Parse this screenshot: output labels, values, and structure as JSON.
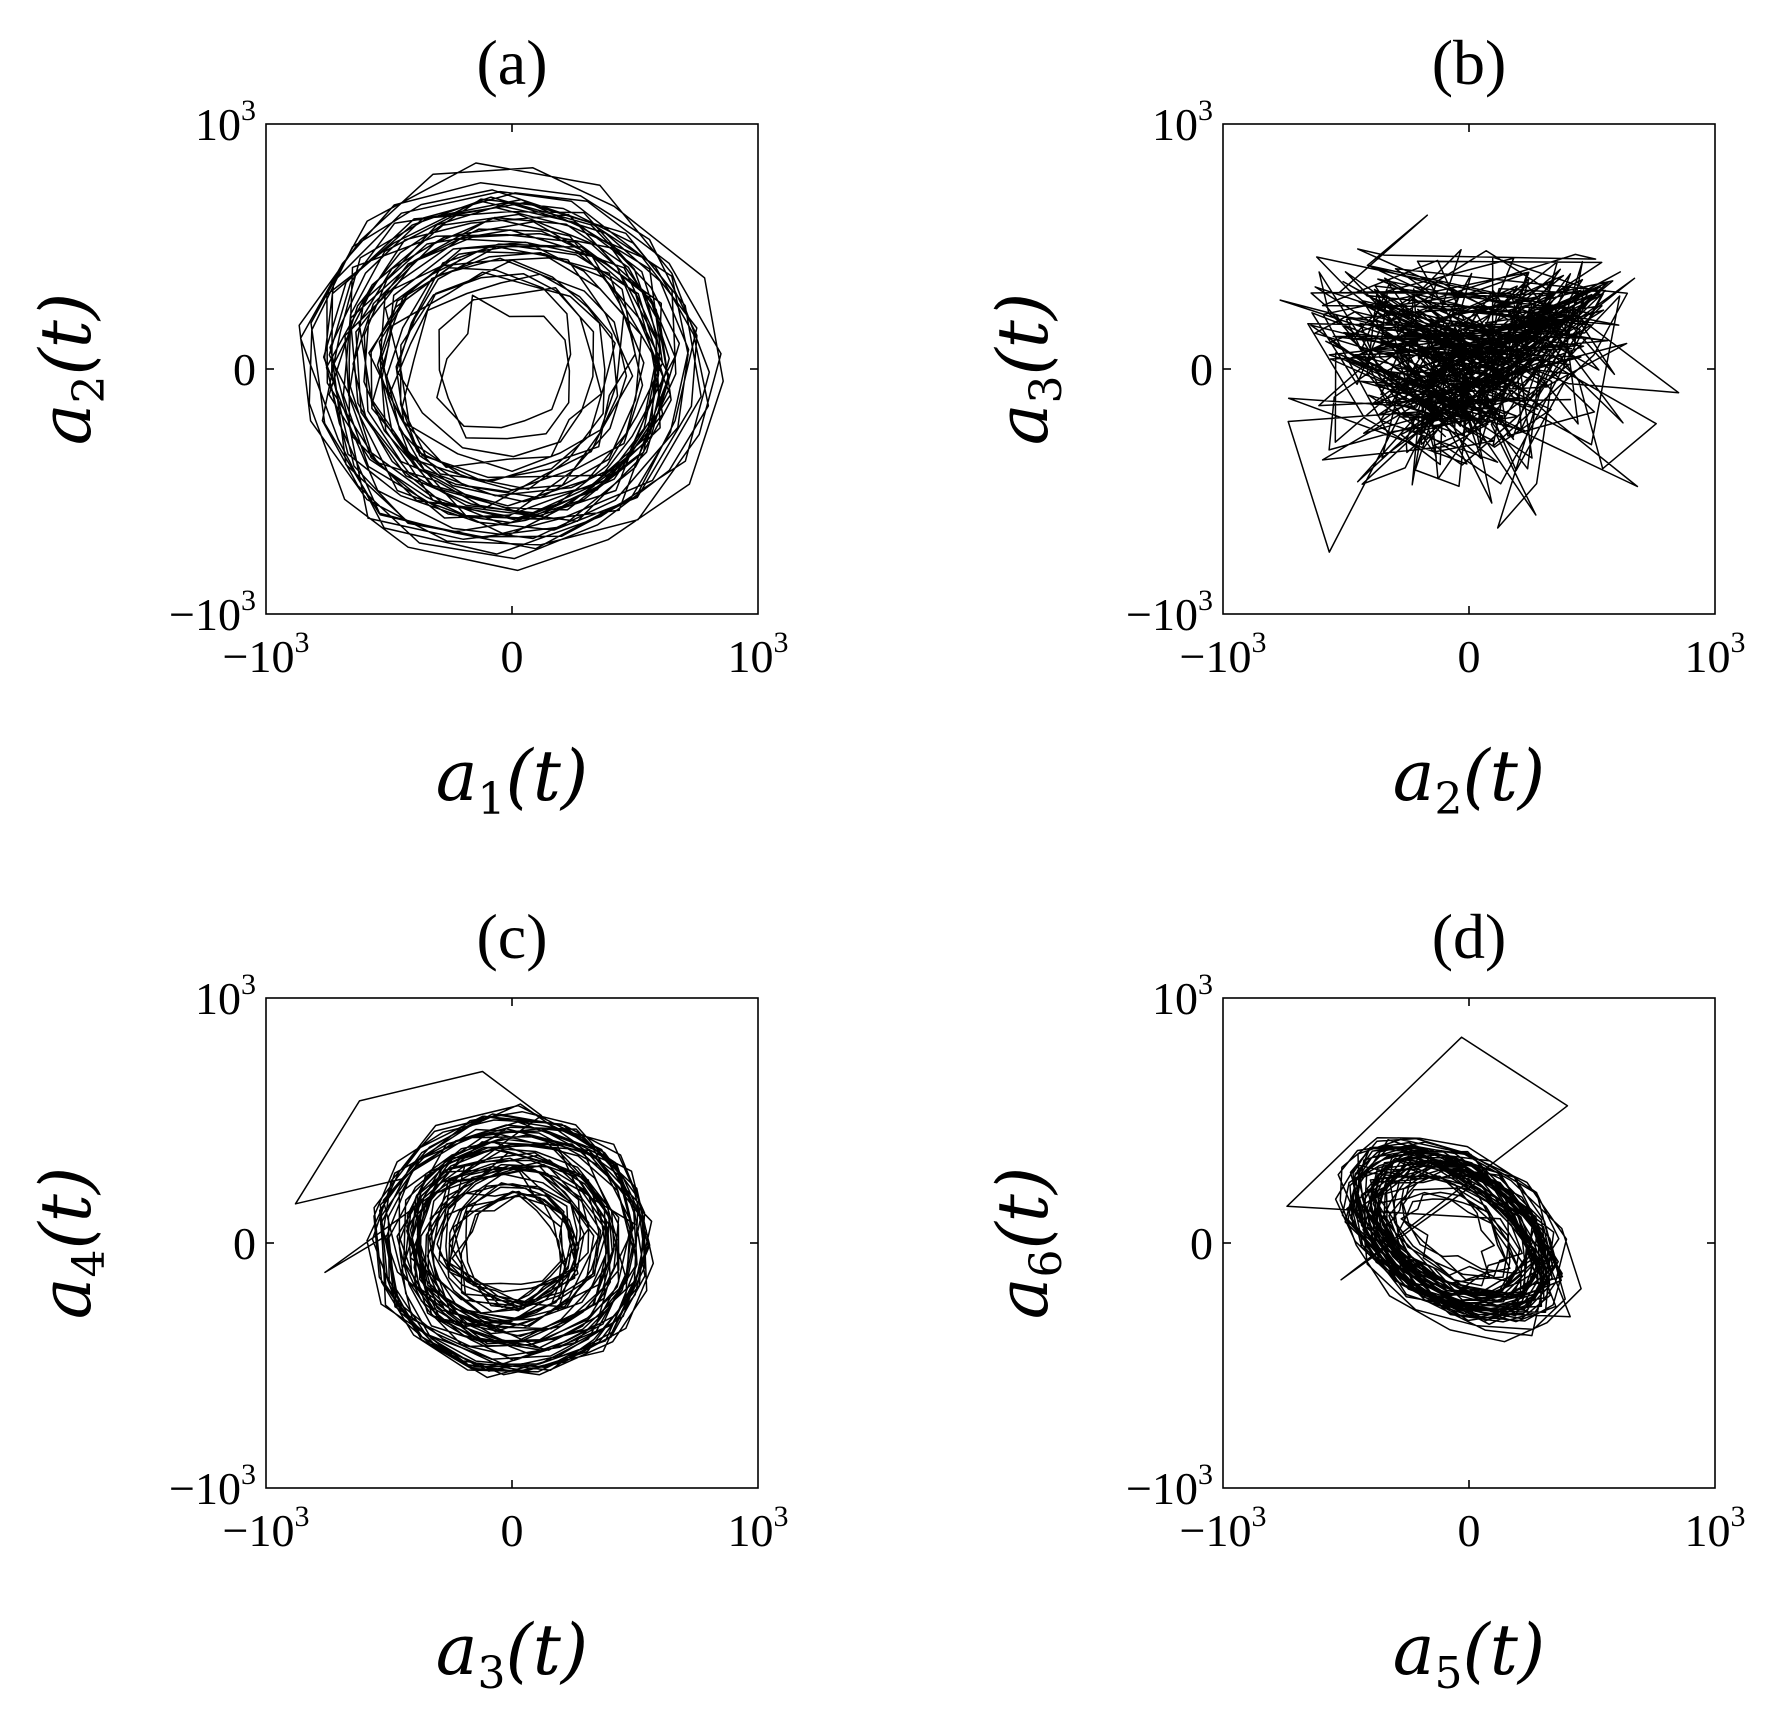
{
  "chart_data": [
    {
      "type": "line",
      "title": "(a)",
      "xlabel": {
        "base": "a",
        "sub": "1",
        "arg": "(t)"
      },
      "ylabel": {
        "base": "a",
        "sub": "2",
        "arg": "(t)"
      },
      "xlim": [
        -1000,
        1000
      ],
      "ylim": [
        -1000,
        1000
      ],
      "xticks": [
        {
          "base": "−10",
          "exp": "3"
        },
        {
          "base": "0",
          "exp": ""
        },
        {
          "base": "10",
          "exp": "3"
        }
      ],
      "yticks": [
        {
          "base": "−10",
          "exp": "3"
        },
        {
          "base": "0",
          "exp": ""
        },
        {
          "base": "10",
          "exp": "3"
        }
      ],
      "trajectory": {
        "kind": "rings",
        "center": [
          -20,
          0
        ],
        "r_min": 120,
        "r_max": 930,
        "sx": 1.0,
        "sy": 0.95,
        "tilt": 0,
        "wiggle": 60,
        "count": 520,
        "seed": 11
      },
      "grid": false,
      "color": "#000000"
    },
    {
      "type": "line",
      "title": "(b)",
      "xlabel": {
        "base": "a",
        "sub": "2",
        "arg": "(t)"
      },
      "ylabel": {
        "base": "a",
        "sub": "3",
        "arg": "(t)"
      },
      "xlim": [
        -1000,
        1000
      ],
      "ylim": [
        -1000,
        1000
      ],
      "xticks": [
        {
          "base": "−10",
          "exp": "3"
        },
        {
          "base": "0",
          "exp": ""
        },
        {
          "base": "10",
          "exp": "3"
        }
      ],
      "yticks": [
        {
          "base": "−10",
          "exp": "3"
        },
        {
          "base": "0",
          "exp": ""
        },
        {
          "base": "10",
          "exp": "3"
        }
      ],
      "trajectory": {
        "kind": "scatter",
        "x_range": [
          -800,
          960
        ],
        "y_range": [
          -860,
          650
        ],
        "center": [
          -50,
          -60
        ],
        "spread": [
          620,
          360
        ],
        "wings": true,
        "count": 520,
        "seed": 23
      },
      "grid": false,
      "color": "#000000"
    },
    {
      "type": "line",
      "title": "(c)",
      "xlabel": {
        "base": "a",
        "sub": "3",
        "arg": "(t)"
      },
      "ylabel": {
        "base": "a",
        "sub": "4",
        "arg": "(t)"
      },
      "xlim": [
        -1000,
        1000
      ],
      "ylim": [
        -1000,
        1000
      ],
      "xticks": [
        {
          "base": "−10",
          "exp": "3"
        },
        {
          "base": "0",
          "exp": ""
        },
        {
          "base": "10",
          "exp": "3"
        }
      ],
      "yticks": [
        {
          "base": "−10",
          "exp": "3"
        },
        {
          "base": "0",
          "exp": ""
        },
        {
          "base": "10",
          "exp": "3"
        }
      ],
      "trajectory": {
        "kind": "rings",
        "center": [
          0,
          0
        ],
        "r_min": 60,
        "r_max": 630,
        "sx": 1.0,
        "sy": 0.95,
        "tilt": 0,
        "wiggle": 45,
        "count": 700,
        "seed": 37,
        "outlier": [
          [
            -880,
            160
          ],
          [
            -620,
            580
          ],
          [
            -120,
            700
          ],
          [
            120,
            520
          ],
          [
            -760,
            -120
          ]
        ]
      },
      "grid": false,
      "color": "#000000"
    },
    {
      "type": "line",
      "title": "(d)",
      "xlabel": {
        "base": "a",
        "sub": "5",
        "arg": "(t)"
      },
      "ylabel": {
        "base": "a",
        "sub": "6",
        "arg": "(t)"
      },
      "xlim": [
        -1000,
        1000
      ],
      "ylim": [
        -1000,
        1000
      ],
      "xticks": [
        {
          "base": "−10",
          "exp": "3"
        },
        {
          "base": "0",
          "exp": ""
        },
        {
          "base": "10",
          "exp": "3"
        }
      ],
      "yticks": [
        {
          "base": "−10",
          "exp": "3"
        },
        {
          "base": "0",
          "exp": ""
        },
        {
          "base": "10",
          "exp": "3"
        }
      ],
      "trajectory": {
        "kind": "rings",
        "center": [
          -60,
          40
        ],
        "r_min": 80,
        "r_max": 560,
        "sx": 1.0,
        "sy": 0.62,
        "tilt": -35,
        "wiggle": 70,
        "count": 700,
        "seed": 51,
        "outlier": [
          [
            -740,
            150
          ],
          [
            -30,
            840
          ],
          [
            400,
            560
          ],
          [
            -520,
            -150
          ]
        ]
      },
      "grid": false,
      "color": "#000000"
    }
  ]
}
